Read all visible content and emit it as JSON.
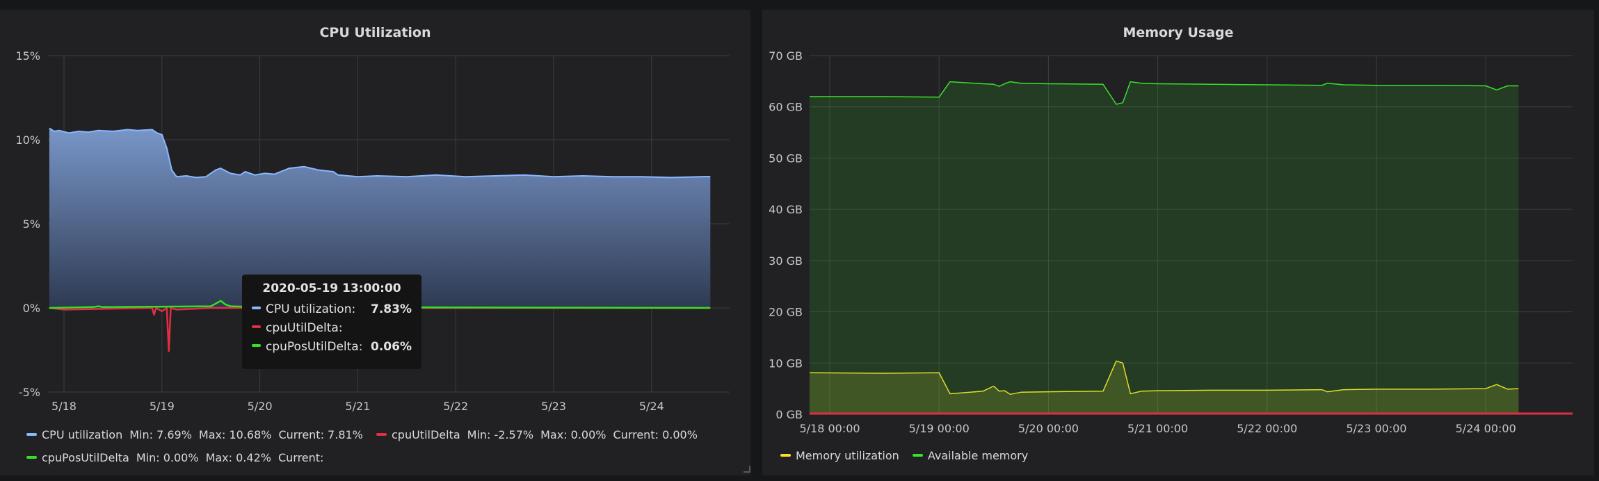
{
  "colors": {
    "background": "#161719",
    "panel": "#212124",
    "grid": "#3c3d40",
    "cpu": "#8ab8ff",
    "delta": "#e02f44",
    "pos_delta": "#35e025",
    "memory_util": "#fade2a",
    "available_memory": "#37e22a"
  },
  "cpu_panel": {
    "title": "CPU Utilization",
    "y_ticks": [
      "15%",
      "10%",
      "5%",
      "0%",
      "-5%"
    ],
    "x_ticks": [
      "5/18",
      "5/19",
      "5/20",
      "5/21",
      "5/22",
      "5/23",
      "5/24"
    ],
    "legend": [
      {
        "name": "CPU utilization",
        "min": "Min: 7.69%",
        "max": "Max: 10.68%",
        "current": "Current: 7.81%"
      },
      {
        "name": "cpuUtilDelta",
        "min": "Min: -2.57%",
        "max": "Max: 0.00%",
        "current": "Current: 0.00%"
      },
      {
        "name": "cpuPosUtilDelta",
        "min": "Min: 0.00%",
        "max": "Max: 0.42%",
        "current": "Current:"
      }
    ],
    "tooltip": {
      "title": "2020-05-19 13:00:00",
      "rows": [
        {
          "label": "CPU utilization:",
          "value": "7.83%"
        },
        {
          "label": "cpuUtilDelta:",
          "value": ""
        },
        {
          "label": "cpuPosUtilDelta:",
          "value": "0.06%"
        }
      ]
    }
  },
  "memory_panel": {
    "title": "Memory Usage",
    "y_ticks": [
      "70 GB",
      "60 GB",
      "50 GB",
      "40 GB",
      "30 GB",
      "20 GB",
      "10 GB",
      "0 GB"
    ],
    "x_ticks": [
      "5/18 00:00",
      "5/19 00:00",
      "5/20 00:00",
      "5/21 00:00",
      "5/22 00:00",
      "5/23 00:00",
      "5/24 00:00"
    ],
    "legend": [
      {
        "name": "Memory utilization"
      },
      {
        "name": "Available memory"
      }
    ]
  },
  "chart_data": [
    {
      "type": "area",
      "title": "CPU Utilization",
      "ylim": [
        -5,
        15
      ],
      "y_unit": "%",
      "x_unit": "days since 5/18 00:00 (2020)",
      "grid": true,
      "legend_placement": "bottom",
      "series": [
        {
          "name": "CPU utilization",
          "x": [
            -0.15,
            -0.1,
            -0.05,
            0.05,
            0.15,
            0.25,
            0.35,
            0.5,
            0.65,
            0.75,
            0.9,
            0.95,
            1.0,
            1.05,
            1.1,
            1.15,
            1.25,
            1.35,
            1.45,
            1.55,
            1.6,
            1.7,
            1.8,
            1.85,
            1.95,
            2.05,
            2.15,
            2.3,
            2.45,
            2.6,
            2.75,
            2.8,
            2.9,
            3.0,
            3.2,
            3.5,
            3.8,
            4.1,
            4.4,
            4.7,
            5.0,
            5.3,
            5.6,
            5.9,
            6.2,
            6.5,
            6.6
          ],
          "y": [
            10.68,
            10.5,
            10.55,
            10.4,
            10.5,
            10.45,
            10.55,
            10.5,
            10.6,
            10.55,
            10.6,
            10.4,
            10.3,
            9.5,
            8.2,
            7.8,
            7.85,
            7.75,
            7.8,
            8.2,
            8.3,
            8.0,
            7.9,
            8.1,
            7.9,
            8.0,
            7.95,
            8.3,
            8.4,
            8.2,
            8.1,
            7.9,
            7.85,
            7.8,
            7.85,
            7.8,
            7.9,
            7.8,
            7.85,
            7.9,
            7.8,
            7.85,
            7.8,
            7.8,
            7.75,
            7.8,
            7.81
          ]
        },
        {
          "name": "cpuUtilDelta",
          "x": [
            -0.15,
            0.0,
            0.9,
            0.92,
            0.94,
            1.0,
            1.05,
            1.07,
            1.09,
            1.15,
            1.5,
            3.0,
            6.6
          ],
          "y": [
            0,
            -0.1,
            0,
            -0.4,
            0,
            -0.2,
            0,
            -2.57,
            0,
            -0.1,
            0,
            0,
            0
          ]
        },
        {
          "name": "cpuPosUtilDelta",
          "x": [
            -0.15,
            0.3,
            0.35,
            0.4,
            1.5,
            1.6,
            1.65,
            1.7,
            2.0,
            2.4,
            2.45,
            2.5,
            6.6
          ],
          "y": [
            0,
            0.05,
            0.1,
            0.05,
            0.1,
            0.42,
            0.2,
            0.1,
            0.05,
            0.06,
            0.1,
            0.05,
            0
          ]
        }
      ]
    },
    {
      "type": "area",
      "title": "Memory Usage",
      "ylim": [
        0,
        70
      ],
      "y_unit": "GB",
      "x_unit": "days since 5/18 00:00 (2020)",
      "grid": true,
      "legend_placement": "bottom",
      "series": [
        {
          "name": "Memory utilization",
          "x": [
            -0.2,
            0.5,
            1.0,
            1.1,
            1.4,
            1.5,
            1.55,
            1.6,
            1.65,
            1.75,
            2.0,
            2.5,
            2.62,
            2.68,
            2.75,
            2.85,
            3.0,
            3.5,
            4.0,
            4.5,
            4.55,
            4.7,
            5.0,
            5.5,
            6.0,
            6.1,
            6.2,
            6.3
          ],
          "y": [
            8.1,
            8.0,
            8.1,
            4.0,
            4.5,
            5.5,
            4.5,
            4.6,
            3.9,
            4.3,
            4.4,
            4.5,
            10.4,
            10.0,
            4.0,
            4.5,
            4.6,
            4.7,
            4.7,
            4.8,
            4.4,
            4.8,
            4.9,
            4.9,
            5.0,
            5.8,
            4.9,
            5.0
          ]
        },
        {
          "name": "Available memory",
          "x": [
            -0.2,
            0.5,
            1.0,
            1.1,
            1.4,
            1.5,
            1.55,
            1.6,
            1.65,
            1.75,
            2.0,
            2.5,
            2.62,
            2.68,
            2.75,
            2.85,
            3.0,
            3.5,
            4.0,
            4.5,
            4.55,
            4.7,
            5.0,
            5.5,
            6.0,
            6.1,
            6.2,
            6.3
          ],
          "y": [
            62.0,
            62.0,
            61.9,
            64.9,
            64.5,
            64.4,
            64.0,
            64.5,
            64.9,
            64.6,
            64.5,
            64.4,
            60.5,
            60.8,
            64.9,
            64.6,
            64.5,
            64.4,
            64.3,
            64.2,
            64.6,
            64.3,
            64.2,
            64.2,
            64.1,
            63.3,
            64.1,
            64.1
          ]
        }
      ]
    }
  ]
}
